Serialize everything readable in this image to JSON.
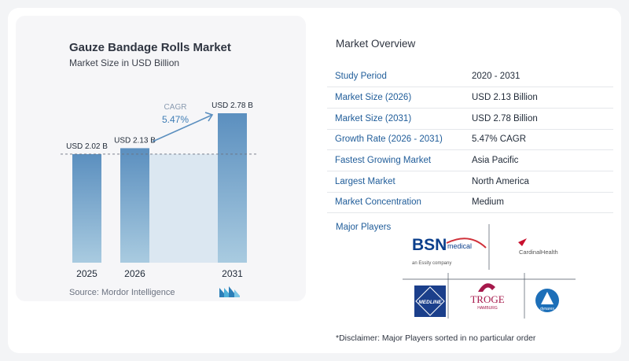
{
  "chart": {
    "title": "Gauze Bandage Rolls Market",
    "subtitle": "Market Size in USD Billion",
    "source": "Source:  Mordor Intelligence",
    "cagr_label": "CAGR",
    "cagr_value": "5.47%"
  },
  "chart_data": {
    "type": "bar",
    "categories": [
      "2025",
      "2026",
      "2031"
    ],
    "values": [
      2.02,
      2.13,
      2.78
    ],
    "data_labels": [
      "USD 2.02 B",
      "USD 2.13 B",
      "USD 2.78 B"
    ],
    "title": "Gauze Bandage Rolls Market",
    "subtitle": "Market Size in USD Billion",
    "xlabel": "",
    "ylabel": "",
    "ylim": [
      0,
      2.78
    ],
    "grid": false,
    "legend": "none",
    "annotation": "CAGR 5.47%",
    "colors": {
      "bar": "#5b8fbf",
      "bar_light": "#a9cbe0",
      "highlight_band": "#dbe7f1",
      "arrow": "#5b8fbf"
    }
  },
  "overview": {
    "title": "Market Overview",
    "rows": [
      {
        "label": "Study Period",
        "value": "2020 - 2031"
      },
      {
        "label": "Market Size (2026)",
        "value": "USD 2.13 Billion"
      },
      {
        "label": "Market Size (2031)",
        "value": "USD 2.78 Billion"
      },
      {
        "label": "Growth Rate (2026 - 2031)",
        "value": "5.47% CAGR"
      },
      {
        "label": "Fastest Growing Market",
        "value": "Asia Pacific"
      },
      {
        "label": "Largest Market",
        "value": "North America"
      },
      {
        "label": "Market Concentration",
        "value": "Medium"
      }
    ]
  },
  "players": {
    "title": "Major Players",
    "bsn_main": "BSN",
    "bsn_medical": "medical",
    "bsn_tagline": "an Essity company",
    "cardinal": "CardinalHealth",
    "medline": "MEDLINE",
    "troge": "TROGE",
    "troge_sub": "HAMBURG",
    "dynarex": "dynarex"
  },
  "disclaimer": "*Disclaimer: Major Players sorted in no particular order"
}
